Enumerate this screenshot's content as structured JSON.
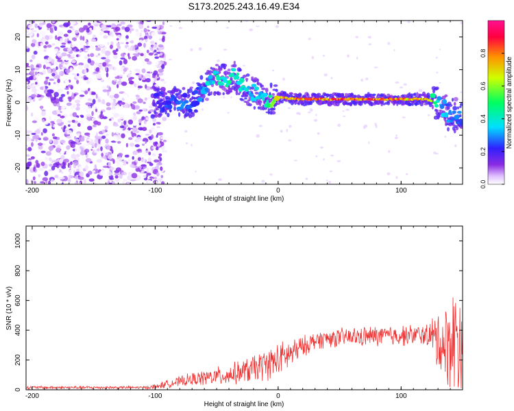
{
  "figure_title": "S173.2025.243.16.49.E34",
  "chart_data": [
    {
      "type": "heatmap",
      "title": "S173.2025.243.16.49.E34",
      "xlabel": "Height of straight line (km)",
      "ylabel": "Frequency (Hz)",
      "xlim": [
        -205,
        150
      ],
      "ylim": [
        -25,
        25
      ],
      "xticks": [
        -200,
        -100,
        0,
        100
      ],
      "yticks": [
        -20,
        -10,
        0,
        10,
        20
      ],
      "colorbar": {
        "label": "Normalized spectral amplitude",
        "range": [
          0,
          1
        ],
        "ticks": [
          0.0,
          0.2,
          0.4,
          0.6,
          0.8
        ],
        "colormap": [
          "#ffffff",
          "#e0c0ff",
          "#8a2be2",
          "#3020ff",
          "#00e0ff",
          "#00ff60",
          "#d0ff00",
          "#ff9000",
          "#ff0040",
          "#ff1090"
        ]
      },
      "noise_region": {
        "x": [
          -205,
          -100
        ],
        "freq_range": [
          -25,
          25
        ],
        "amplitude": "0.0-0.2"
      },
      "ridge": {
        "x": [
          -100,
          -90,
          -80,
          -70,
          -60,
          -50,
          -40,
          -35,
          -30,
          -20,
          -10,
          0,
          20,
          40,
          60,
          80,
          100,
          120,
          130,
          140,
          150
        ],
        "frequency": [
          0,
          0,
          0,
          0,
          5,
          7,
          7,
          8,
          5,
          3,
          1,
          1.5,
          1,
          1,
          1,
          1,
          1,
          1,
          0,
          -4,
          -4
        ],
        "amplitude": [
          0.2,
          0.25,
          0.3,
          0.25,
          0.35,
          0.45,
          0.45,
          0.5,
          0.45,
          0.35,
          0.45,
          0.8,
          0.85,
          0.9,
          0.9,
          0.9,
          0.85,
          0.8,
          0.4,
          0.3,
          0.3
        ]
      }
    },
    {
      "type": "line",
      "xlabel": "Height of straight line (km)",
      "ylabel": "SNR (10 * v/v)",
      "xlim": [
        -205,
        150
      ],
      "ylim": [
        0,
        1100
      ],
      "xticks": [
        -200,
        -100,
        0,
        100
      ],
      "yticks": [
        0,
        200,
        400,
        600,
        800,
        1000
      ],
      "color": "#ee3333",
      "envelope": {
        "x": [
          -205,
          -150,
          -110,
          -100,
          -90,
          -80,
          -70,
          -60,
          -50,
          -40,
          -30,
          -20,
          -10,
          0,
          10,
          20,
          30,
          40,
          60,
          80,
          100,
          120,
          125,
          130,
          135,
          140,
          145,
          150
        ],
        "mean": [
          15,
          15,
          15,
          20,
          40,
          55,
          70,
          80,
          90,
          100,
          120,
          140,
          170,
          200,
          240,
          290,
          330,
          345,
          355,
          360,
          365,
          370,
          360,
          330,
          300,
          320,
          350,
          350
        ],
        "spread": [
          12,
          12,
          10,
          20,
          30,
          40,
          50,
          60,
          70,
          80,
          90,
          110,
          120,
          130,
          120,
          80,
          70,
          70,
          75,
          80,
          80,
          80,
          140,
          250,
          300,
          350,
          500,
          400
        ]
      }
    }
  ]
}
